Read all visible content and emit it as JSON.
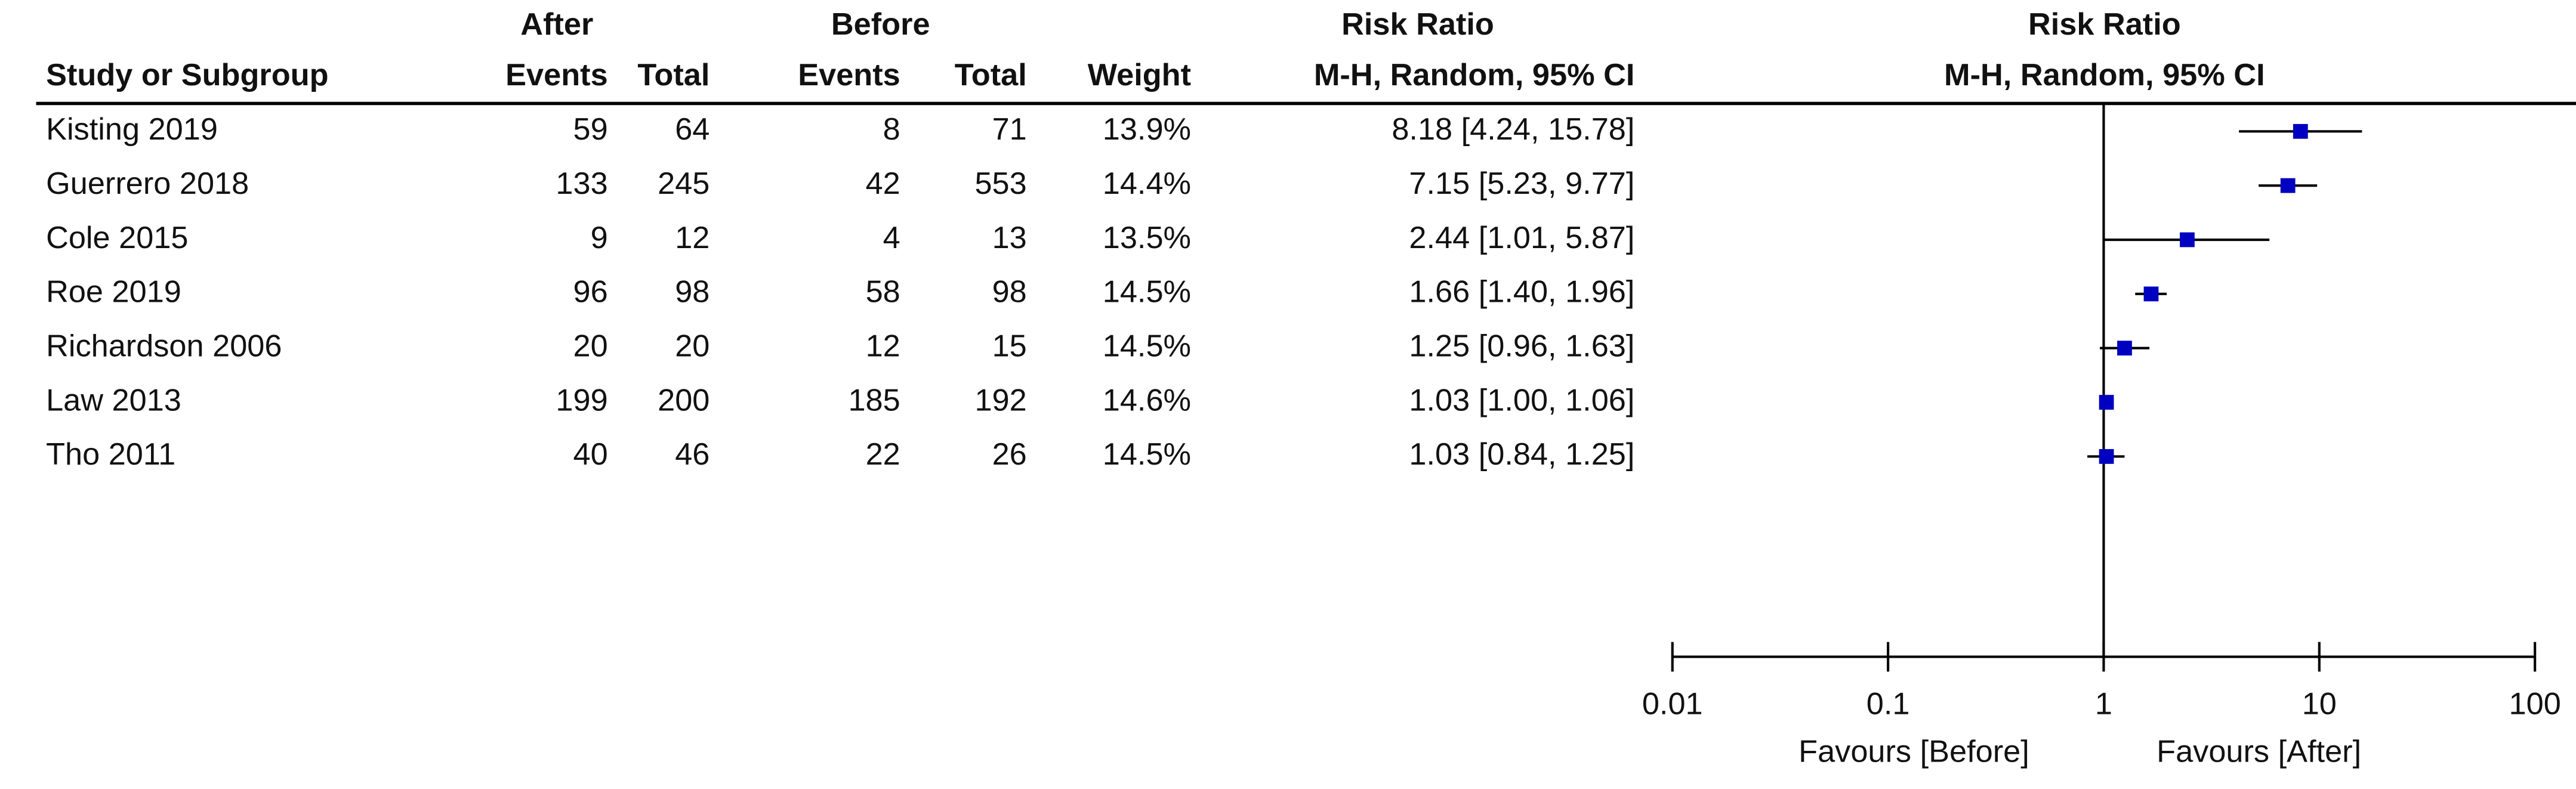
{
  "chart_data": {
    "type": "forest",
    "group_headers": {
      "after": "After",
      "before": "Before",
      "rr_table": "Risk Ratio",
      "rr_plot": "Risk Ratio"
    },
    "columns": [
      "Study or Subgroup",
      "Events",
      "Total",
      "Events",
      "Total",
      "Weight",
      "M-H, Random, 95% CI",
      "M-H, Random, 95% CI"
    ],
    "studies": [
      "Kisting 2019",
      "Guerrero 2018",
      "Cole 2015",
      "Roe 2019",
      "Richardson 2006",
      "Law 2013",
      "Tho 2011"
    ],
    "after_events": [
      59,
      133,
      9,
      96,
      20,
      199,
      40
    ],
    "after_total": [
      64,
      245,
      12,
      98,
      20,
      200,
      46
    ],
    "before_events": [
      8,
      42,
      4,
      58,
      12,
      185,
      22
    ],
    "before_total": [
      71,
      553,
      13,
      98,
      15,
      192,
      26
    ],
    "weights": [
      "13.9%",
      "14.4%",
      "13.5%",
      "14.5%",
      "14.5%",
      "14.6%",
      "14.5%"
    ],
    "rr": [
      8.18,
      7.15,
      2.44,
      1.66,
      1.25,
      1.03,
      1.03
    ],
    "ci_low": [
      4.24,
      5.23,
      1.01,
      1.4,
      0.96,
      1.0,
      0.84
    ],
    "ci_high": [
      15.78,
      9.77,
      5.87,
      1.96,
      1.63,
      1.06,
      1.25
    ],
    "rr_labels": [
      "8.18 [4.24, 15.78]",
      "7.15 [5.23, 9.77]",
      "2.44 [1.01, 5.87]",
      "1.66 [1.40, 1.96]",
      "1.25 [0.96, 1.63]",
      "1.03 [1.00, 1.06]",
      "1.03 [0.84, 1.25]"
    ],
    "xlim": [
      0.01,
      100
    ],
    "xticks": [
      0.01,
      0.1,
      1,
      10,
      100
    ],
    "log_x": true,
    "x_labels": [
      "Favours [Before]",
      "Favours [After]"
    ],
    "color": "#0000c0"
  }
}
